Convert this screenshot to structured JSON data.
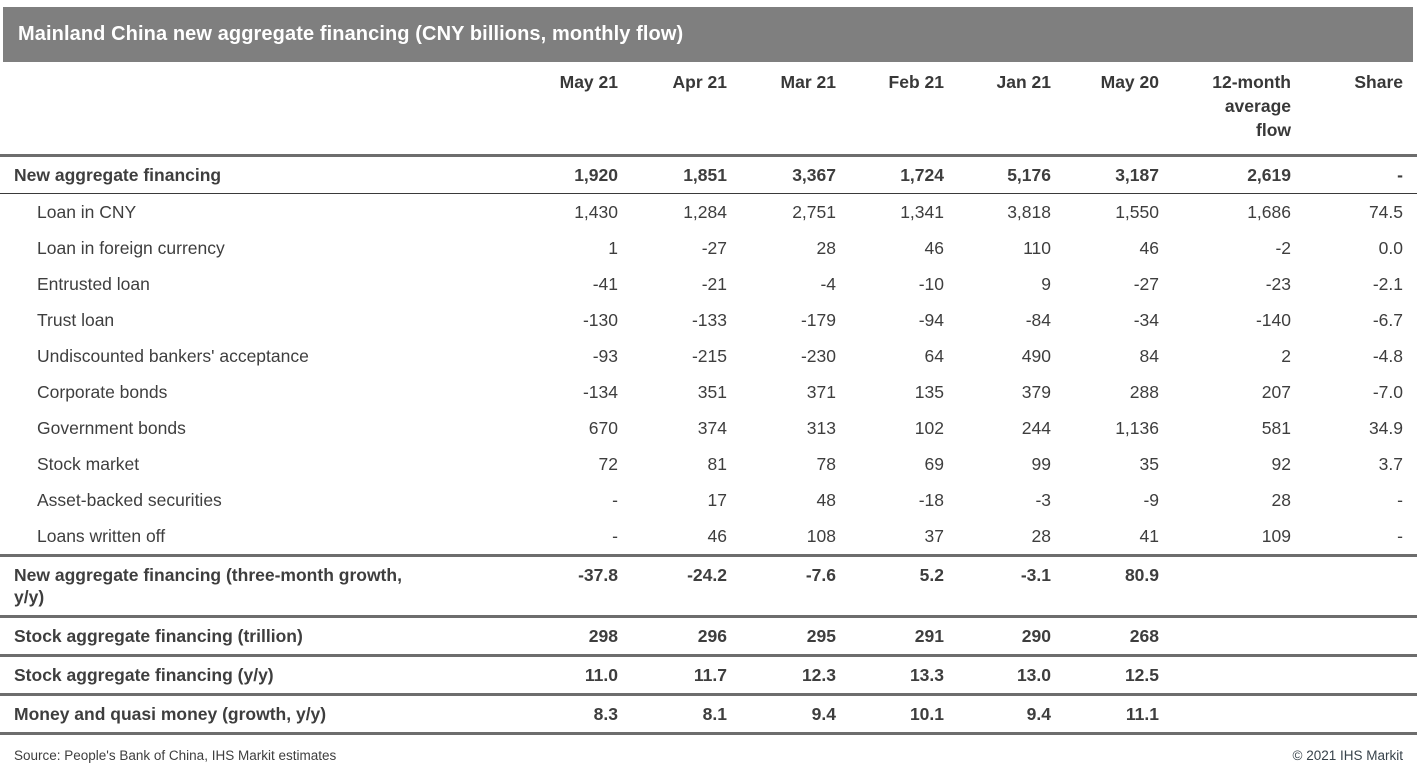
{
  "title": "Mainland China new aggregate financing (CNY billions, monthly flow)",
  "footer": {
    "source": "Source: People's Bank of China, IHS Markit estimates",
    "copyright": "© 2021 IHS Markit"
  },
  "colors": {
    "title_bar_background": "#7f7f7f",
    "title_text": "#ffffff",
    "thick_rule": "#6d6d6d",
    "thin_rule": "#3a3a3a",
    "body_text": "#3e3e3e"
  },
  "chart_data": {
    "type": "table",
    "title": "Mainland China new aggregate financing (CNY billions, monthly flow)",
    "columns": [
      "",
      "May 21",
      "Apr 21",
      "Mar 21",
      "Feb 21",
      "Jan 21",
      "May 20",
      "12-month average flow",
      "Share"
    ],
    "rows": [
      {
        "label": "New aggregate financing",
        "style": "total",
        "values": [
          "1,920",
          "1,851",
          "3,367",
          "1,724",
          "5,176",
          "3,187",
          "2,619",
          "-"
        ]
      },
      {
        "label": "Loan in CNY",
        "style": "detail",
        "values": [
          "1,430",
          "1,284",
          "2,751",
          "1,341",
          "3,818",
          "1,550",
          "1,686",
          "74.5"
        ]
      },
      {
        "label": "Loan in foreign currency",
        "style": "detail",
        "values": [
          "1",
          "-27",
          "28",
          "46",
          "110",
          "46",
          "-2",
          "0.0"
        ]
      },
      {
        "label": "Entrusted loan",
        "style": "detail",
        "values": [
          "-41",
          "-21",
          "-4",
          "-10",
          "9",
          "-27",
          "-23",
          "-2.1"
        ]
      },
      {
        "label": "Trust loan",
        "style": "detail",
        "values": [
          "-130",
          "-133",
          "-179",
          "-94",
          "-84",
          "-34",
          "-140",
          "-6.7"
        ]
      },
      {
        "label": "Undiscounted bankers' acceptance",
        "style": "detail",
        "values": [
          "-93",
          "-215",
          "-230",
          "64",
          "490",
          "84",
          "2",
          "-4.8"
        ]
      },
      {
        "label": "Corporate bonds",
        "style": "detail",
        "values": [
          "-134",
          "351",
          "371",
          "135",
          "379",
          "288",
          "207",
          "-7.0"
        ]
      },
      {
        "label": "Government bonds",
        "style": "detail",
        "values": [
          "670",
          "374",
          "313",
          "102",
          "244",
          "1,136",
          "581",
          "34.9"
        ]
      },
      {
        "label": "Stock market",
        "style": "detail",
        "values": [
          "72",
          "81",
          "78",
          "69",
          "99",
          "35",
          "92",
          "3.7"
        ]
      },
      {
        "label": "Asset-backed securities",
        "style": "detail",
        "values": [
          "-",
          "17",
          "48",
          "-18",
          "-3",
          "-9",
          "28",
          "-"
        ]
      },
      {
        "label": "Loans written off",
        "style": "detail",
        "values": [
          "-",
          "46",
          "108",
          "37",
          "28",
          "41",
          "109",
          "-"
        ]
      },
      {
        "label": "New aggregate financing (three-month growth, y/y)",
        "style": "section",
        "values": [
          "-37.8",
          "-24.2",
          "-7.6",
          "5.2",
          "-3.1",
          "80.9",
          "",
          ""
        ]
      },
      {
        "label": "Stock aggregate financing (trillion)",
        "style": "section",
        "values": [
          "298",
          "296",
          "295",
          "291",
          "290",
          "268",
          "",
          ""
        ]
      },
      {
        "label": "Stock aggregate financing (y/y)",
        "style": "section",
        "values": [
          "11.0",
          "11.7",
          "12.3",
          "13.3",
          "13.0",
          "12.5",
          "",
          ""
        ]
      },
      {
        "label": "Money and quasi money (growth, y/y)",
        "style": "section",
        "values": [
          "8.3",
          "8.1",
          "9.4",
          "10.1",
          "9.4",
          "11.1",
          "",
          ""
        ]
      }
    ]
  }
}
